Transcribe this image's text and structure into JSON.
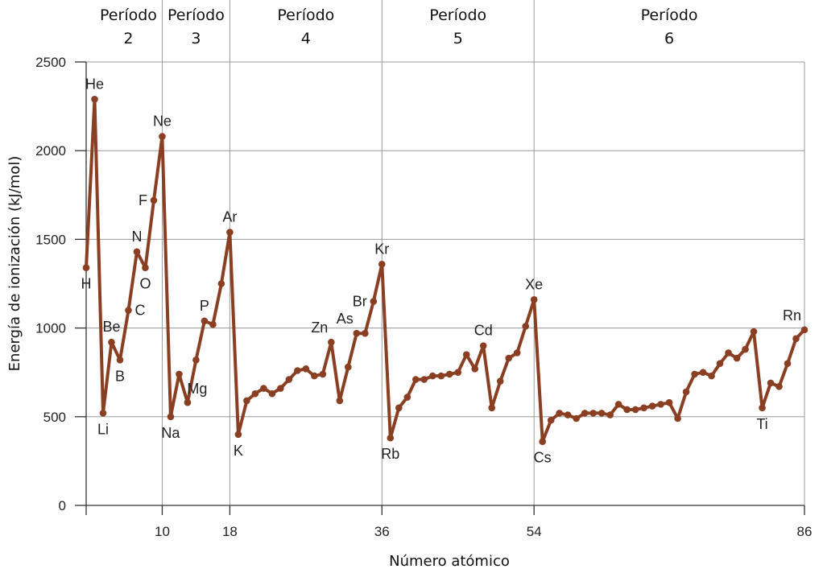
{
  "chart_data": {
    "type": "line",
    "title": "",
    "xlabel": "Número atómico",
    "ylabel": "Energía de ionización (kJ/mol)",
    "xlim": [
      1,
      86
    ],
    "ylim": [
      0,
      2500
    ],
    "grid": true,
    "line_color": "#8b3f22",
    "y_ticks": [
      0,
      500,
      1000,
      1500,
      2000,
      2500
    ],
    "y_tick_labels": [
      "0",
      "500",
      "1000",
      "1500",
      "2000",
      "2500"
    ],
    "x_ticks": [
      10,
      18,
      36,
      54,
      86
    ],
    "x_tick_labels": [
      "10",
      "18",
      "36",
      "54",
      "86"
    ],
    "period_bounds": [
      2,
      10,
      18,
      36,
      54,
      86
    ],
    "periods": [
      {
        "line1": "Período",
        "line2": "2",
        "from": 2,
        "to": 10
      },
      {
        "line1": "Período",
        "line2": "3",
        "from": 10,
        "to": 18
      },
      {
        "line1": "Período",
        "line2": "4",
        "from": 18,
        "to": 36
      },
      {
        "line1": "Período",
        "line2": "5",
        "from": 36,
        "to": 54
      },
      {
        "line1": "Período",
        "line2": "6",
        "from": 54,
        "to": 86
      }
    ],
    "series": [
      {
        "x": [
          1,
          2,
          3,
          4,
          5,
          6,
          7,
          8,
          9,
          10,
          11,
          12,
          13,
          14,
          15,
          16,
          17,
          18,
          19,
          20,
          21,
          22,
          23,
          24,
          25,
          26,
          27,
          28,
          29,
          30,
          31,
          32,
          33,
          34,
          35,
          36,
          37,
          38,
          39,
          40,
          41,
          42,
          43,
          44,
          45,
          46,
          47,
          48,
          49,
          50,
          51,
          52,
          53,
          54,
          55,
          56,
          57,
          58,
          59,
          60,
          61,
          62,
          63,
          64,
          65,
          66,
          67,
          68,
          69,
          70,
          71,
          72,
          73,
          74,
          75,
          76,
          77,
          78,
          79,
          80,
          81,
          82,
          83,
          84,
          85,
          86
        ],
        "y": [
          1340,
          2290,
          520,
          920,
          820,
          1100,
          1430,
          1340,
          1720,
          2080,
          500,
          740,
          580,
          820,
          1040,
          1020,
          1250,
          1540,
          400,
          590,
          630,
          660,
          630,
          660,
          710,
          760,
          770,
          730,
          740,
          920,
          590,
          780,
          970,
          970,
          1150,
          1360,
          380,
          550,
          610,
          710,
          710,
          730,
          730,
          740,
          750,
          850,
          770,
          900,
          550,
          700,
          830,
          860,
          1010,
          1160,
          360,
          480,
          520,
          510,
          490,
          520,
          520,
          520,
          510,
          570,
          540,
          540,
          550,
          560,
          570,
          580,
          490,
          640,
          740,
          750,
          730,
          800,
          860,
          830,
          880,
          980,
          550,
          690,
          670,
          800,
          940,
          990
        ]
      }
    ],
    "labeled_points": [
      {
        "label": "H",
        "x": 1,
        "pos": "below"
      },
      {
        "label": "He",
        "x": 2,
        "pos": "above"
      },
      {
        "label": "Li",
        "x": 3,
        "pos": "below"
      },
      {
        "label": "Be",
        "x": 4,
        "pos": "above"
      },
      {
        "label": "B",
        "x": 5,
        "pos": "below"
      },
      {
        "label": "C",
        "x": 6,
        "pos": "right"
      },
      {
        "label": "N",
        "x": 7,
        "pos": "above"
      },
      {
        "label": "O",
        "x": 8,
        "pos": "below"
      },
      {
        "label": "F",
        "x": 9,
        "pos": "left"
      },
      {
        "label": "Ne",
        "x": 10,
        "pos": "above"
      },
      {
        "label": "Na",
        "x": 11,
        "pos": "below"
      },
      {
        "label": "Mg",
        "x": 12,
        "pos": "belowright"
      },
      {
        "label": "P",
        "x": 15,
        "pos": "above"
      },
      {
        "label": "Ar",
        "x": 18,
        "pos": "above"
      },
      {
        "label": "K",
        "x": 19,
        "pos": "below"
      },
      {
        "label": "Zn",
        "x": 30,
        "pos": "aboveleft"
      },
      {
        "label": "As",
        "x": 33,
        "pos": "aboveleft"
      },
      {
        "label": "Br",
        "x": 35,
        "pos": "left"
      },
      {
        "label": "Kr",
        "x": 36,
        "pos": "above"
      },
      {
        "label": "Rb",
        "x": 37,
        "pos": "below"
      },
      {
        "label": "Cd",
        "x": 48,
        "pos": "above"
      },
      {
        "label": "Xe",
        "x": 54,
        "pos": "above"
      },
      {
        "label": "Cs",
        "x": 55,
        "pos": "below"
      },
      {
        "label": "Ti",
        "x": 81,
        "pos": "below"
      },
      {
        "label": "Rn",
        "x": 86,
        "pos": "aboveleft"
      }
    ]
  }
}
